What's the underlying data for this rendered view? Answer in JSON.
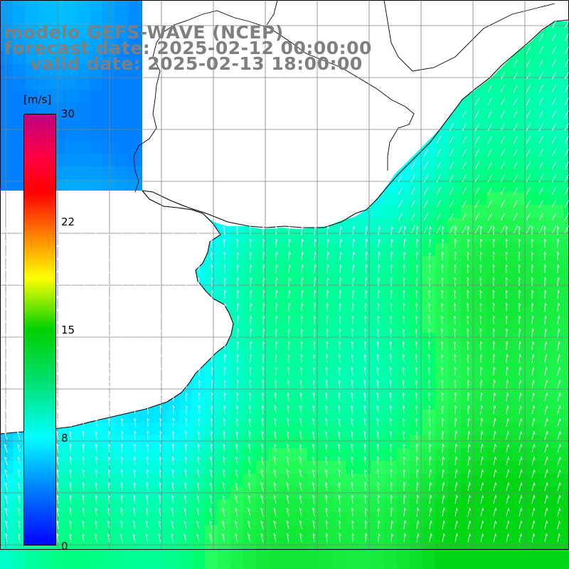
{
  "title": {
    "line1": "modelo GEFS-WAVE (NCEP)",
    "line2": "forecast date: 2025-02-12 00:00:00",
    "line3": "valid date: 2025-02-13 18:00:00"
  },
  "colorbar": {
    "unit": "[m/s]",
    "min": 0,
    "max": 30,
    "ticks": [
      {
        "label": "30",
        "value": 30
      },
      {
        "label": "22",
        "value": 22
      },
      {
        "label": "15",
        "value": 15
      },
      {
        "label": "8",
        "value": 8
      },
      {
        "label": "0",
        "value": 0
      }
    ],
    "colors": [
      "#0000ff",
      "#0080ff",
      "#00ffff",
      "#00e070",
      "#00d000",
      "#ffff00",
      "#ff8000",
      "#ff0000",
      "#c00080"
    ]
  },
  "map": {
    "land_color": "#ffffff",
    "grid_color": "#808080",
    "grid_lines": true,
    "vector_color": "#ffffff",
    "coast_color": "#000000"
  }
}
